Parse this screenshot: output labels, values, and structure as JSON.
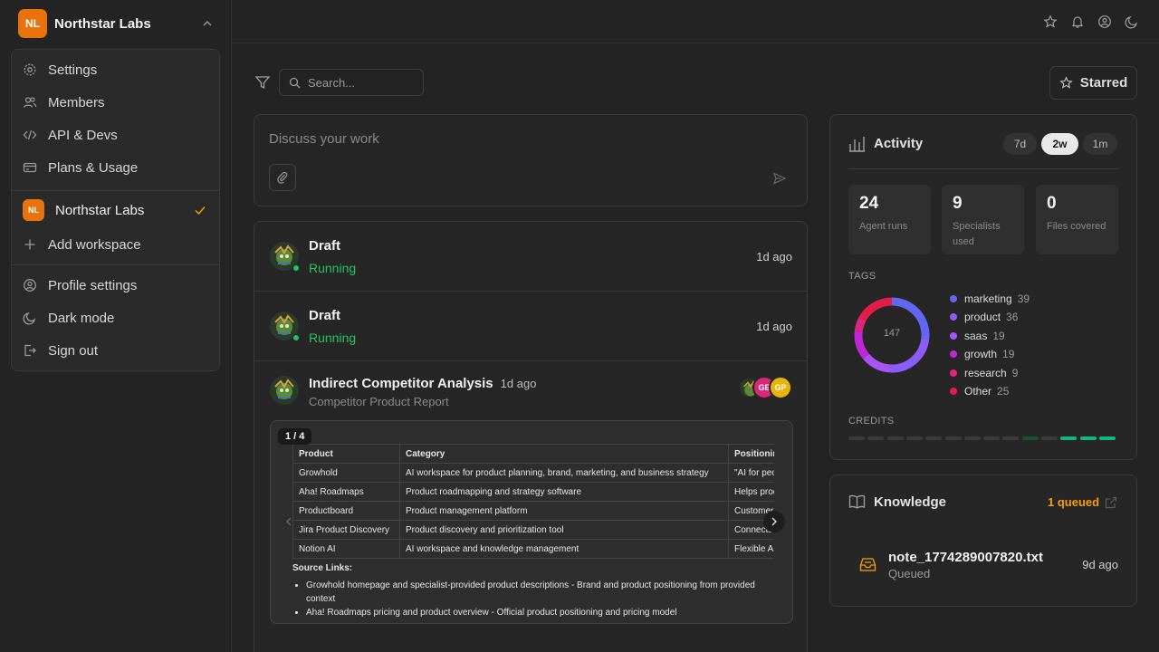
{
  "workspace": {
    "initials": "NL",
    "name": "Northstar Labs"
  },
  "menu": {
    "items": [
      {
        "label": "Settings",
        "icon": "gear-icon"
      },
      {
        "label": "Members",
        "icon": "users-icon"
      },
      {
        "label": "API & Devs",
        "icon": "code-icon"
      },
      {
        "label": "Plans & Usage",
        "icon": "card-icon"
      }
    ],
    "current_workspace": {
      "initials": "NL",
      "name": "Northstar Labs"
    },
    "add_workspace": "Add workspace",
    "profile_settings": "Profile settings",
    "dark_mode": "Dark mode",
    "sign_out": "Sign out"
  },
  "search": {
    "placeholder": "Search..."
  },
  "starred_label": "Starred",
  "composer": {
    "placeholder": "Discuss your work"
  },
  "feed": [
    {
      "title": "Draft",
      "status": "Running",
      "time": "1d ago"
    },
    {
      "title": "Draft",
      "status": "Running",
      "time": "1d ago"
    }
  ],
  "report": {
    "title": "Indirect Competitor Analysis",
    "time": "1d ago",
    "subtitle": "Competitor Product Report",
    "collaborators": [
      {
        "initials": "GE",
        "color": "#db2777"
      },
      {
        "initials": "GP",
        "color": "#eab308"
      }
    ],
    "page_indicator": "1 / 4",
    "table": {
      "headers": [
        "Product",
        "Category",
        "Positioning"
      ],
      "rows": [
        [
          "Growhold",
          "AI workspace for product planning, brand, marketing, and business strategy",
          "\"AI for people"
        ],
        [
          "Aha! Roadmaps",
          "Product roadmapping and strategy software",
          "Helps product"
        ],
        [
          "Productboard",
          "Product management platform",
          "Customer-dri"
        ],
        [
          "Jira Product Discovery",
          "Product discovery and prioritization tool",
          "Connects pro"
        ],
        [
          "Notion AI",
          "AI workspace and knowledge management",
          "Flexible AI-po"
        ]
      ]
    },
    "source_heading": "Source Links:",
    "sources": [
      "Growhold homepage and specialist-provided product descriptions - Brand and product positioning from provided context",
      "Aha! Roadmaps pricing and product overview - Official product positioning and pricing model"
    ]
  },
  "activity": {
    "title": "Activity",
    "ranges": [
      "7d",
      "2w",
      "1m"
    ],
    "active_range": "2w",
    "stats": [
      {
        "value": "24",
        "label": "Agent runs"
      },
      {
        "value": "9",
        "label": "Specialists used"
      },
      {
        "value": "0",
        "label": "Files covered"
      }
    ],
    "tags_heading": "TAGS",
    "tags_total": "147",
    "tags": [
      {
        "name": "marketing",
        "count": 39,
        "color": "#6366f1"
      },
      {
        "name": "product",
        "count": 36,
        "color": "#8b5cf6"
      },
      {
        "name": "saas",
        "count": 19,
        "color": "#a855f7"
      },
      {
        "name": "growth",
        "count": 19,
        "color": "#c026d3"
      },
      {
        "name": "research",
        "count": 9,
        "color": "#db2777"
      },
      {
        "name": "Other",
        "count": 25,
        "color": "#e11d48"
      }
    ],
    "credits_heading": "CREDITS",
    "credits": [
      "empty",
      "empty",
      "empty",
      "empty",
      "empty",
      "empty",
      "empty",
      "empty",
      "empty",
      "used",
      "empty",
      "active",
      "active",
      "active"
    ]
  },
  "knowledge": {
    "title": "Knowledge",
    "queued_label": "1 queued",
    "file": {
      "name": "note_1774289007820.txt",
      "status": "Queued",
      "time": "9d ago"
    }
  }
}
